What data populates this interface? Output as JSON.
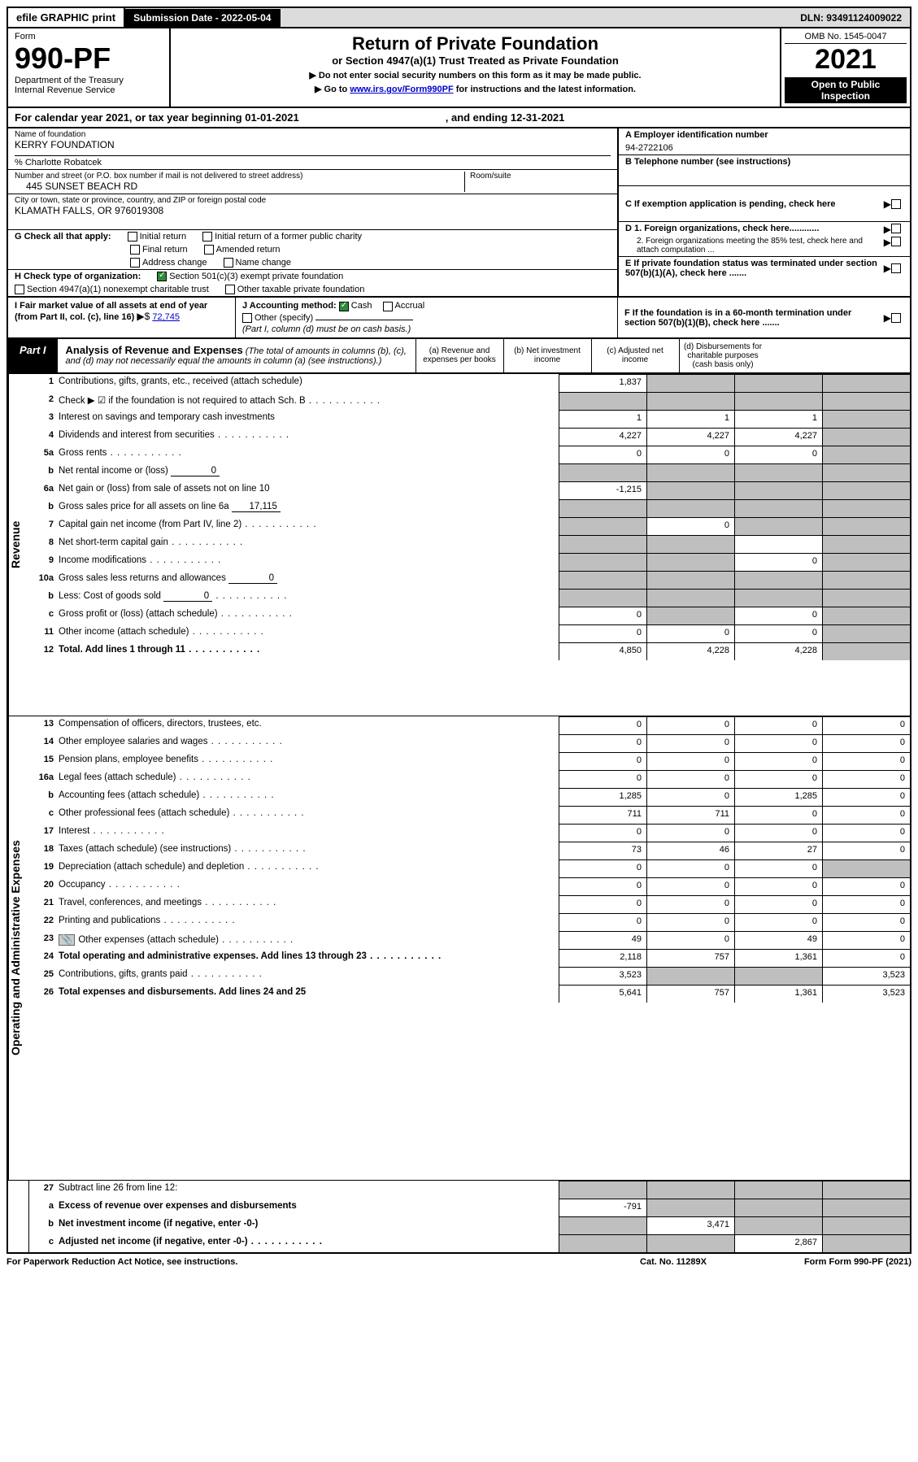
{
  "top_bar": {
    "efile": "efile GRAPHIC print",
    "submission_label": "Submission Date - 2022-05-04",
    "dln": "DLN: 93491124009022"
  },
  "header": {
    "form_label": "Form",
    "form_num": "990-PF",
    "dept": "Department of the Treasury",
    "irs": "Internal Revenue Service",
    "title": "Return of Private Foundation",
    "subtitle": "or Section 4947(a)(1) Trust Treated as Private Foundation",
    "note1": "▶ Do not enter social security numbers on this form as it may be made public.",
    "note2_pre": "▶ Go to ",
    "note2_link": "www.irs.gov/Form990PF",
    "note2_post": " for instructions and the latest information.",
    "omb": "OMB No. 1545-0047",
    "year": "2021",
    "open": "Open to Public Inspection"
  },
  "cal_year": {
    "pre": "For calendar year 2021, or tax year beginning 01-01-2021",
    "end": ", and ending 12-31-2021"
  },
  "info": {
    "name_label": "Name of foundation",
    "name": "KERRY FOUNDATION",
    "care_of": "% Charlotte Robatcek",
    "addr_label": "Number and street (or P.O. box number if mail is not delivered to street address)",
    "addr": "445 SUNSET BEACH RD",
    "room_label": "Room/suite",
    "city_label": "City or town, state or province, country, and ZIP or foreign postal code",
    "city": "KLAMATH FALLS, OR  976019308",
    "a_label": "A Employer identification number",
    "a_val": "94-2722106",
    "b_label": "B Telephone number (see instructions)",
    "c_label": "C If exemption application is pending, check here",
    "d1_label": "D 1. Foreign organizations, check here............",
    "d2_label": "2. Foreign organizations meeting the 85% test, check here and attach computation ...",
    "e_label": "E   If private foundation status was terminated under section 507(b)(1)(A), check here .......",
    "f_label": "F   If the foundation is in a 60-month termination under section 507(b)(1)(B), check here .......",
    "g_label": "G Check all that apply:",
    "g_opts": [
      "Initial return",
      "Initial return of a former public charity",
      "Final return",
      "Amended return",
      "Address change",
      "Name change"
    ],
    "h_label": "H Check type of organization:",
    "h_opt1": "Section 501(c)(3) exempt private foundation",
    "h_opt2": "Section 4947(a)(1) nonexempt charitable trust",
    "h_opt3": "Other taxable private foundation",
    "i_label": "I Fair market value of all assets at end of year (from Part II, col. (c), line 16)",
    "i_val": "72,745",
    "j_label": "J Accounting method:",
    "j_cash": "Cash",
    "j_accrual": "Accrual",
    "j_other": "Other (specify)",
    "j_note": "(Part I, column (d) must be on cash basis.)"
  },
  "part1": {
    "tab": "Part I",
    "title": "Analysis of Revenue and Expenses",
    "sub": "(The total of amounts in columns (b), (c), and (d) may not necessarily equal the amounts in column (a) (see instructions).)",
    "cols": {
      "a": "(a)   Revenue and expenses per books",
      "b": "(b)   Net investment income",
      "c": "(c)   Adjusted net income",
      "d": "(d)   Disbursements for charitable purposes (cash basis only)"
    }
  },
  "side_labels": {
    "revenue": "Revenue",
    "expenses": "Operating and Administrative Expenses"
  },
  "rows": [
    {
      "n": "1",
      "desc": "Contributions, gifts, grants, etc., received (attach schedule)",
      "a": "1,837",
      "b": "",
      "c": "",
      "d": "",
      "shade": [
        "b",
        "c",
        "d"
      ]
    },
    {
      "n": "2",
      "desc": "Check ▶ ☑ if the foundation is not required to attach Sch. B",
      "a": "",
      "b": "",
      "c": "",
      "d": "",
      "shade": [
        "a",
        "b",
        "c",
        "d"
      ],
      "dots": true
    },
    {
      "n": "3",
      "desc": "Interest on savings and temporary cash investments",
      "a": "1",
      "b": "1",
      "c": "1",
      "d": "",
      "shade": [
        "d"
      ]
    },
    {
      "n": "4",
      "desc": "Dividends and interest from securities",
      "a": "4,227",
      "b": "4,227",
      "c": "4,227",
      "d": "",
      "shade": [
        "d"
      ],
      "dots": true
    },
    {
      "n": "5a",
      "desc": "Gross rents",
      "a": "0",
      "b": "0",
      "c": "0",
      "d": "",
      "shade": [
        "d"
      ],
      "dots": true
    },
    {
      "n": "b",
      "desc": "Net rental income or (loss)",
      "inline": "0",
      "a": "",
      "b": "",
      "c": "",
      "d": "",
      "shade": [
        "a",
        "b",
        "c",
        "d"
      ]
    },
    {
      "n": "6a",
      "desc": "Net gain or (loss) from sale of assets not on line 10",
      "a": "-1,215",
      "b": "",
      "c": "",
      "d": "",
      "shade": [
        "b",
        "c",
        "d"
      ]
    },
    {
      "n": "b",
      "desc": "Gross sales price for all assets on line 6a",
      "inline": "17,115",
      "a": "",
      "b": "",
      "c": "",
      "d": "",
      "shade": [
        "a",
        "b",
        "c",
        "d"
      ]
    },
    {
      "n": "7",
      "desc": "Capital gain net income (from Part IV, line 2)",
      "a": "",
      "b": "0",
      "c": "",
      "d": "",
      "shade": [
        "a",
        "c",
        "d"
      ],
      "dots": true
    },
    {
      "n": "8",
      "desc": "Net short-term capital gain",
      "a": "",
      "b": "",
      "c": "",
      "d": "",
      "shade": [
        "a",
        "b",
        "d"
      ],
      "dots": true
    },
    {
      "n": "9",
      "desc": "Income modifications",
      "a": "",
      "b": "",
      "c": "0",
      "d": "",
      "shade": [
        "a",
        "b",
        "d"
      ],
      "dots": true
    },
    {
      "n": "10a",
      "desc": "Gross sales less returns and allowances",
      "inline": "0",
      "a": "",
      "b": "",
      "c": "",
      "d": "",
      "shade": [
        "a",
        "b",
        "c",
        "d"
      ]
    },
    {
      "n": "b",
      "desc": "Less: Cost of goods sold",
      "inline": "0",
      "a": "",
      "b": "",
      "c": "",
      "d": "",
      "shade": [
        "a",
        "b",
        "c",
        "d"
      ],
      "dots": true
    },
    {
      "n": "c",
      "desc": "Gross profit or (loss) (attach schedule)",
      "a": "0",
      "b": "",
      "c": "0",
      "d": "",
      "shade": [
        "b",
        "d"
      ],
      "dots": true
    },
    {
      "n": "11",
      "desc": "Other income (attach schedule)",
      "a": "0",
      "b": "0",
      "c": "0",
      "d": "",
      "shade": [
        "d"
      ],
      "dots": true
    },
    {
      "n": "12",
      "desc": "Total. Add lines 1 through 11",
      "a": "4,850",
      "b": "4,228",
      "c": "4,228",
      "d": "",
      "bold": true,
      "shade": [
        "d"
      ],
      "dots": true
    }
  ],
  "exp_rows": [
    {
      "n": "13",
      "desc": "Compensation of officers, directors, trustees, etc.",
      "a": "0",
      "b": "0",
      "c": "0",
      "d": "0"
    },
    {
      "n": "14",
      "desc": "Other employee salaries and wages",
      "a": "0",
      "b": "0",
      "c": "0",
      "d": "0",
      "dots": true
    },
    {
      "n": "15",
      "desc": "Pension plans, employee benefits",
      "a": "0",
      "b": "0",
      "c": "0",
      "d": "0",
      "dots": true
    },
    {
      "n": "16a",
      "desc": "Legal fees (attach schedule)",
      "a": "0",
      "b": "0",
      "c": "0",
      "d": "0",
      "dots": true
    },
    {
      "n": "b",
      "desc": "Accounting fees (attach schedule)",
      "a": "1,285",
      "b": "0",
      "c": "1,285",
      "d": "0",
      "dots": true
    },
    {
      "n": "c",
      "desc": "Other professional fees (attach schedule)",
      "a": "711",
      "b": "711",
      "c": "0",
      "d": "0",
      "dots": true
    },
    {
      "n": "17",
      "desc": "Interest",
      "a": "0",
      "b": "0",
      "c": "0",
      "d": "0",
      "dots": true
    },
    {
      "n": "18",
      "desc": "Taxes (attach schedule) (see instructions)",
      "a": "73",
      "b": "46",
      "c": "27",
      "d": "0",
      "dots": true
    },
    {
      "n": "19",
      "desc": "Depreciation (attach schedule) and depletion",
      "a": "0",
      "b": "0",
      "c": "0",
      "d": "",
      "shade": [
        "d"
      ],
      "dots": true
    },
    {
      "n": "20",
      "desc": "Occupancy",
      "a": "0",
      "b": "0",
      "c": "0",
      "d": "0",
      "dots": true
    },
    {
      "n": "21",
      "desc": "Travel, conferences, and meetings",
      "a": "0",
      "b": "0",
      "c": "0",
      "d": "0",
      "dots": true
    },
    {
      "n": "22",
      "desc": "Printing and publications",
      "a": "0",
      "b": "0",
      "c": "0",
      "d": "0",
      "dots": true
    },
    {
      "n": "23",
      "desc": "Other expenses (attach schedule)",
      "a": "49",
      "b": "0",
      "c": "49",
      "d": "0",
      "icon": true,
      "dots": true
    },
    {
      "n": "24",
      "desc": "Total operating and administrative expenses. Add lines 13 through 23",
      "a": "2,118",
      "b": "757",
      "c": "1,361",
      "d": "0",
      "bold": true,
      "dots": true
    },
    {
      "n": "25",
      "desc": "Contributions, gifts, grants paid",
      "a": "3,523",
      "b": "",
      "c": "",
      "d": "3,523",
      "shade": [
        "b",
        "c"
      ],
      "dots": true
    },
    {
      "n": "26",
      "desc": "Total expenses and disbursements. Add lines 24 and 25",
      "a": "5,641",
      "b": "757",
      "c": "1,361",
      "d": "3,523",
      "bold": true
    }
  ],
  "final_rows": [
    {
      "n": "27",
      "desc": "Subtract line 26 from line 12:",
      "a": "",
      "b": "",
      "c": "",
      "d": "",
      "shade": [
        "a",
        "b",
        "c",
        "d"
      ]
    },
    {
      "n": "a",
      "desc": "Excess of revenue over expenses and disbursements",
      "a": "-791",
      "b": "",
      "c": "",
      "d": "",
      "bold": true,
      "shade": [
        "b",
        "c",
        "d"
      ]
    },
    {
      "n": "b",
      "desc": "Net investment income (if negative, enter -0-)",
      "a": "",
      "b": "3,471",
      "c": "",
      "d": "",
      "bold": true,
      "shade": [
        "a",
        "c",
        "d"
      ]
    },
    {
      "n": "c",
      "desc": "Adjusted net income (if negative, enter -0-)",
      "a": "",
      "b": "",
      "c": "2,867",
      "d": "",
      "bold": true,
      "shade": [
        "a",
        "b",
        "d"
      ],
      "dots": true
    }
  ],
  "footer": {
    "left": "For Paperwork Reduction Act Notice, see instructions.",
    "mid": "Cat. No. 11289X",
    "right": "Form 990-PF (2021)"
  }
}
